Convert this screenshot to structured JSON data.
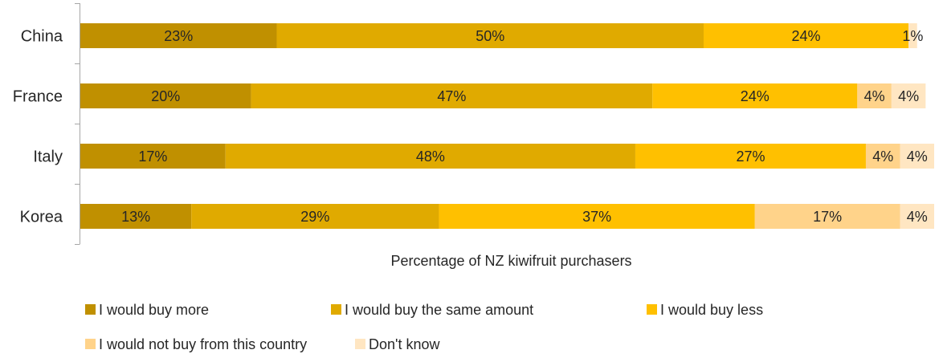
{
  "chart_data": {
    "type": "bar",
    "orientation": "horizontal",
    "stacked": true,
    "percent": true,
    "xlabel": "Percentage of NZ kiwifruit purchasers",
    "categories": [
      "China",
      "France",
      "Italy",
      "Korea"
    ],
    "series": [
      {
        "name": "I would buy more",
        "color": "#C09000",
        "values": [
          23,
          20,
          17,
          13
        ]
      },
      {
        "name": "I would buy the same amount",
        "color": "#E0AA00",
        "values": [
          50,
          47,
          48,
          29
        ]
      },
      {
        "name": "I would buy less",
        "color": "#FFC000",
        "values": [
          24,
          24,
          27,
          37
        ]
      },
      {
        "name": "I would not buy from this country",
        "color": "#FFD38A",
        "values": [
          0,
          4,
          4,
          17
        ]
      },
      {
        "name": "Don't know",
        "color": "#FFE6C2",
        "values": [
          1,
          4,
          4,
          4
        ]
      }
    ],
    "data_labels": [
      [
        "23%",
        "50%",
        "24%",
        "",
        "1%"
      ],
      [
        "20%",
        "47%",
        "24%",
        "4%",
        "4%"
      ],
      [
        "17%",
        "48%",
        "27%",
        "4%",
        "4%"
      ],
      [
        "13%",
        "29%",
        "37%",
        "17%",
        "4%"
      ]
    ],
    "xlim": [
      0,
      100
    ],
    "grid": false,
    "legend_position": "bottom"
  }
}
